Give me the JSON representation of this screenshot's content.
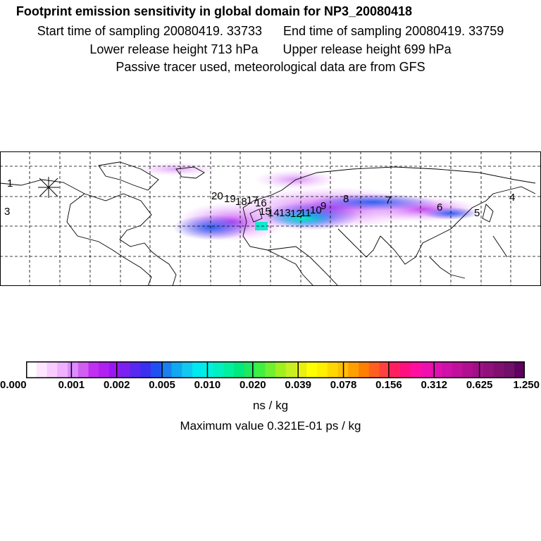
{
  "header": {
    "title": "Footprint emission sensitivity in global domain for NP3_20080418",
    "start_label": "Start time of sampling 20080419. 33733",
    "end_label": "End time of sampling 20080419. 33759",
    "lower_label": "Lower release height  713 hPa",
    "upper_label": "Upper release height  699 hPa",
    "note": "Passive tracer used, meteorological data are from GFS"
  },
  "map": {
    "point_labels": [
      "1",
      "3",
      "20",
      "19",
      "18",
      "17",
      "16",
      "15",
      "14",
      "13",
      "12",
      "11",
      "10",
      "9",
      "8",
      "7",
      "6",
      "5",
      "4"
    ]
  },
  "colorbar": {
    "ticks": [
      "0.000",
      "0.001",
      "0.002",
      "0.005",
      "0.010",
      "0.020",
      "0.039",
      "0.078",
      "0.156",
      "0.312",
      "0.625",
      "1.250"
    ],
    "colors": [
      "#ffffff",
      "#ffe6ff",
      "#f8ccff",
      "#eeb0ff",
      "#dc8cff",
      "#d060f0",
      "#c030f0",
      "#b020f0",
      "#9a18f0",
      "#7a20f0",
      "#5a28f0",
      "#3a30f0",
      "#2050f0",
      "#1a80f0",
      "#10a8f0",
      "#10c8f0",
      "#00e8f0",
      "#00f0e0",
      "#00f0c0",
      "#00f0a0",
      "#00e880",
      "#20e860",
      "#40f040",
      "#70f030",
      "#a0f020",
      "#c8f020",
      "#e8f010",
      "#ffff00",
      "#fff000",
      "#ffd800",
      "#ffc000",
      "#ffa000",
      "#ff8000",
      "#ff6020",
      "#ff4040",
      "#ff2060",
      "#ff1080",
      "#ff10a0",
      "#f010b0",
      "#e010b0",
      "#d010a8",
      "#c0109c",
      "#b01090",
      "#a01088",
      "#90107c",
      "#801070",
      "#701068",
      "#600060"
    ]
  },
  "units_label": "ns / kg",
  "max_label": "Maximum value  0.321E-01 ps / kg"
}
